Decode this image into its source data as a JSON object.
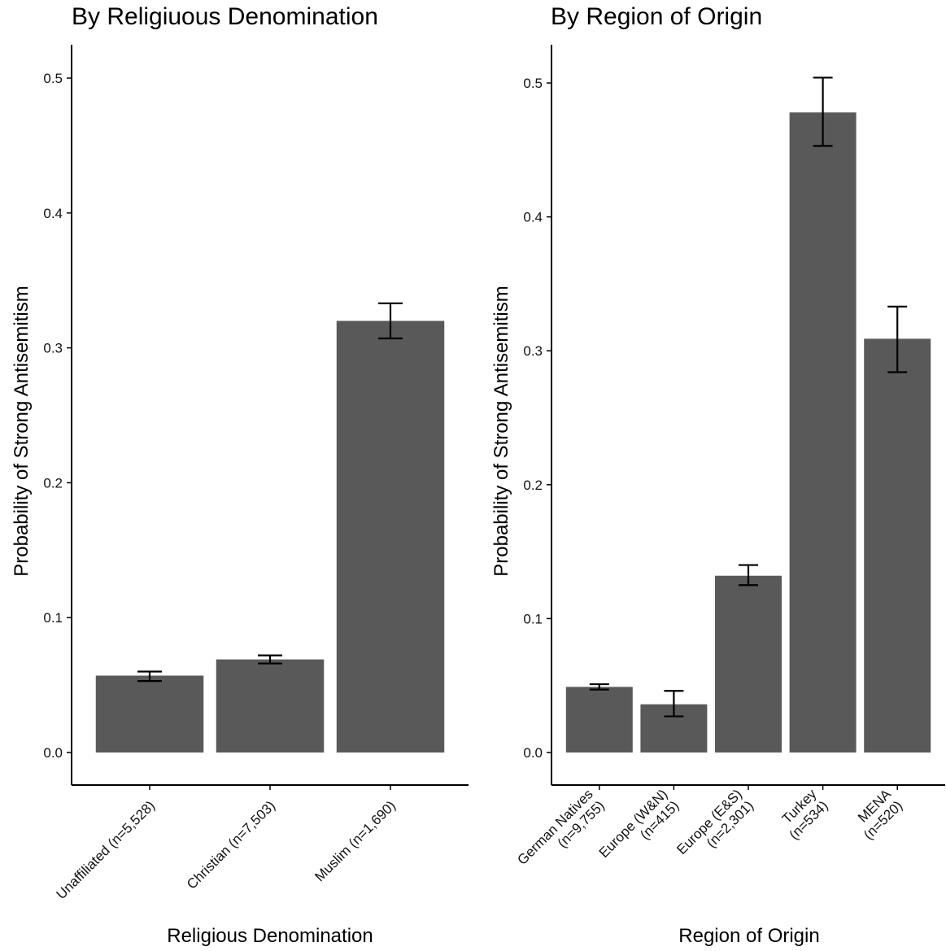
{
  "chart_data": [
    {
      "type": "bar",
      "title": "By Religiuous Denomination",
      "xlabel": "Religious Denomination",
      "ylabel": "Probability of Strong Antisemitism",
      "ylim": [
        0,
        0.5
      ],
      "yticks": [
        "0.0",
        "0.1",
        "0.2",
        "0.3",
        "0.4",
        "0.5"
      ],
      "categories": [
        [
          "Unaffiliated (n=5,528)"
        ],
        [
          "Christian (n=7,503)"
        ],
        [
          "Muslim (n=1,690)"
        ]
      ],
      "values": [
        0.057,
        0.069,
        0.32
      ],
      "error_low": [
        0.053,
        0.066,
        0.307
      ],
      "error_high": [
        0.06,
        0.072,
        0.333
      ],
      "grid": false,
      "bar_color": "#595959"
    },
    {
      "type": "bar",
      "title": "By Region of Origin",
      "xlabel": "Region of Origin",
      "ylabel": "Probability of Strong Antisemitism",
      "ylim": [
        0,
        0.5
      ],
      "yticks": [
        "0.0",
        "0.1",
        "0.2",
        "0.3",
        "0.4",
        "0.5"
      ],
      "categories": [
        [
          "German Natives",
          "(n=9,755)"
        ],
        [
          "Europe (W&N)",
          "(n=415)"
        ],
        [
          "Europe (E&S)",
          "(n=2,301)"
        ],
        [
          "Turkey",
          "(n=534)"
        ],
        [
          "MENA",
          "(n=520)"
        ]
      ],
      "values": [
        0.049,
        0.036,
        0.132,
        0.478,
        0.309
      ],
      "error_low": [
        0.047,
        0.027,
        0.125,
        0.453,
        0.284
      ],
      "error_high": [
        0.051,
        0.046,
        0.14,
        0.504,
        0.333
      ],
      "grid": false,
      "bar_color": "#595959"
    }
  ]
}
